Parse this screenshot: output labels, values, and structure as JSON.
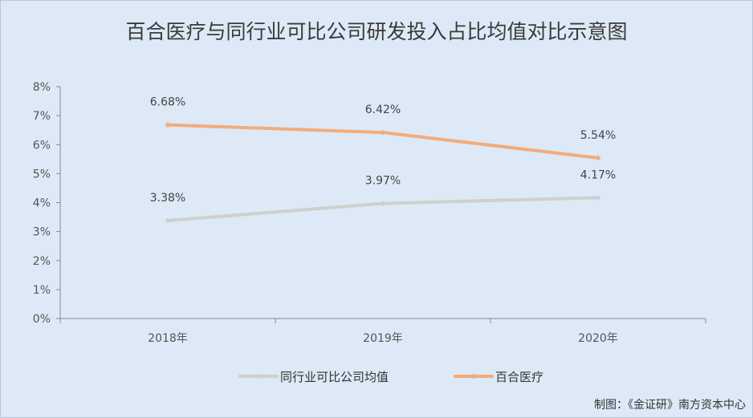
{
  "chart_data": {
    "type": "line",
    "title": "百合医疗与同行业可比公司研发投入占比均值对比示意图",
    "categories": [
      "2018年",
      "2019年",
      "2020年"
    ],
    "ylim": [
      0,
      8
    ],
    "yticks": [
      "0%",
      "1%",
      "2%",
      "3%",
      "4%",
      "5%",
      "6%",
      "7%",
      "8%"
    ],
    "grid": false,
    "legend_position": "bottom",
    "series": [
      {
        "name": "同行业可比公司均值",
        "values": [
          3.38,
          3.97,
          4.17
        ],
        "labels": [
          "3.38%",
          "3.97%",
          "4.17%"
        ],
        "color": "#cfcfcf"
      },
      {
        "name": "百合医疗",
        "values": [
          6.68,
          6.42,
          5.54
        ],
        "labels": [
          "6.68%",
          "6.42%",
          "5.54%"
        ],
        "color": "#f4ab78"
      }
    ],
    "source": "制图：《金证研》南方资本中心"
  },
  "colors": {
    "background": "#dde9f6",
    "axis": "#8a8a8a"
  }
}
